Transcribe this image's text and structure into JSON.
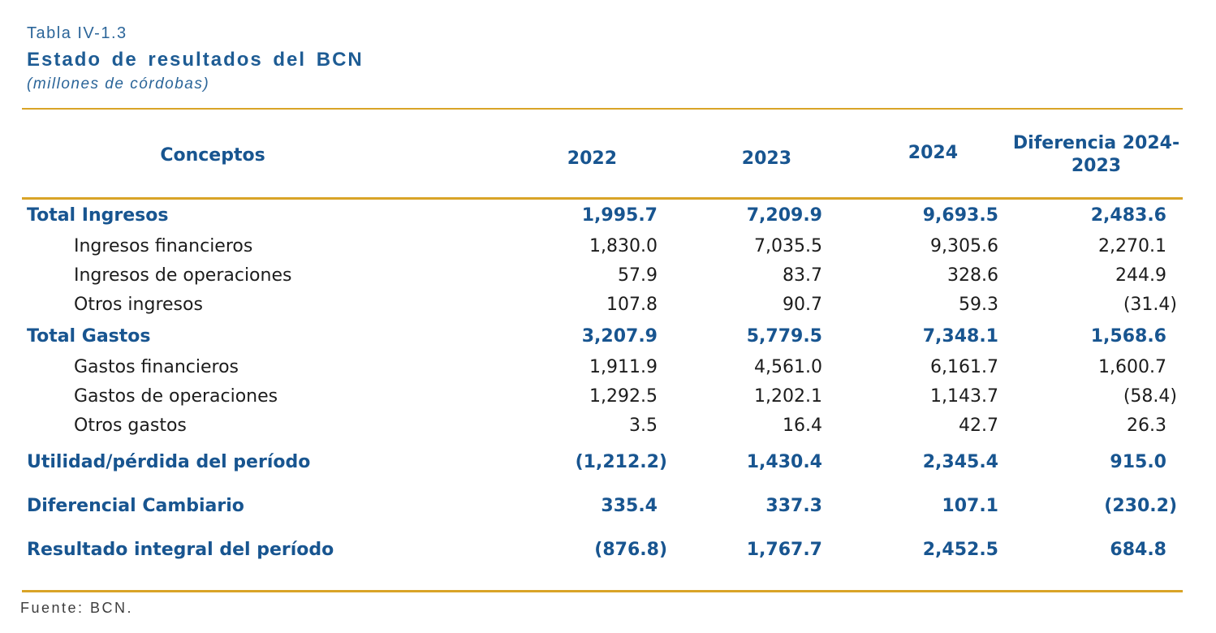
{
  "header": {
    "table_number": "Tabla IV-1.3",
    "title": "Estado de resultados del BCN",
    "subtitle": "(millones de córdobas)"
  },
  "table": {
    "columns": [
      "Conceptos",
      "2022",
      "2023",
      "2024",
      "Diferencia 2024-2023"
    ],
    "rows": [
      {
        "label": "Total Ingresos",
        "style": "group",
        "values": [
          "1,995.7",
          "7,209.9",
          "9,693.5",
          "2,483.6"
        ]
      },
      {
        "label": "Ingresos financieros",
        "style": "detail",
        "values": [
          "1,830.0",
          "7,035.5",
          "9,305.6",
          "2,270.1"
        ]
      },
      {
        "label": "Ingresos de operaciones",
        "style": "detail",
        "values": [
          "57.9",
          "83.7",
          "328.6",
          "244.9"
        ]
      },
      {
        "label": "Otros ingresos",
        "style": "detail",
        "values": [
          "107.8",
          "90.7",
          "59.3",
          "(31.4)"
        ]
      },
      {
        "label": "Total Gastos",
        "style": "group",
        "values": [
          "3,207.9",
          "5,779.5",
          "7,348.1",
          "1,568.6"
        ]
      },
      {
        "label": "Gastos financieros",
        "style": "detail",
        "values": [
          "1,911.9",
          "4,561.0",
          "6,161.7",
          "1,600.7"
        ]
      },
      {
        "label": "Gastos de operaciones",
        "style": "detail",
        "values": [
          "1,292.5",
          "1,202.1",
          "1,143.7",
          "(58.4)"
        ]
      },
      {
        "label": "Otros gastos",
        "style": "detail",
        "values": [
          "3.5",
          "16.4",
          "42.7",
          "26.3"
        ]
      },
      {
        "label": "Utilidad/pérdida del período",
        "style": "summary",
        "values": [
          "(1,212.2)",
          "1,430.4",
          "2,345.4",
          "915.0"
        ]
      },
      {
        "label": "Diferencial Cambiario",
        "style": "summary",
        "values": [
          "335.4",
          "337.3",
          "107.1",
          "(230.2)"
        ]
      },
      {
        "label": "Resultado integral del período",
        "style": "summary",
        "values": [
          "(876.8)",
          "1,767.7",
          "2,452.5",
          "684.8"
        ]
      }
    ]
  },
  "footer": {
    "source": "Fuente: BCN."
  },
  "colors": {
    "accent_blue": "#185590",
    "title_blue": "#2B6599",
    "gold_rule": "#D9A427",
    "body_text": "#1C1C1C"
  }
}
